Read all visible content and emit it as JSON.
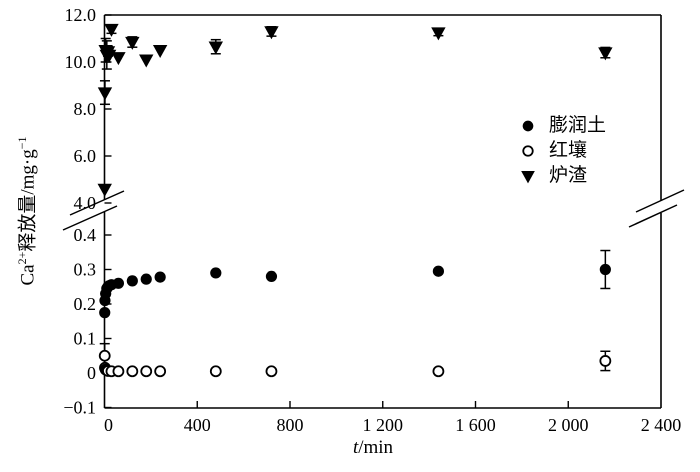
{
  "figure": {
    "background": "#ffffff",
    "ink": "#000000",
    "y_axis_title": {
      "prefix": "Ca",
      "sup1": "2+",
      "mid": "释放量/mg·g",
      "sup2": "−1"
    },
    "x_axis_title": {
      "italic_part": "t",
      "rest": "/min"
    },
    "x_ticks": [
      {
        "t": 0,
        "label": "0"
      },
      {
        "t": 400,
        "label": "400"
      },
      {
        "t": 800,
        "label": "800"
      },
      {
        "t": 1200,
        "label": "1 200"
      },
      {
        "t": 1600,
        "label": "1 600"
      },
      {
        "t": 2000,
        "label": "2 000"
      },
      {
        "t": 2400,
        "label": "2 400"
      }
    ],
    "y_ticks_upper": [
      {
        "v": 12.0,
        "label": "12.0"
      },
      {
        "v": 10.0,
        "label": "10.0"
      },
      {
        "v": 8.0,
        "label": "8.0"
      },
      {
        "v": 6.0,
        "label": "6.0"
      },
      {
        "v": 4.0,
        "label": "4.0"
      }
    ],
    "y_ticks_lower": [
      {
        "v": 0.4,
        "label": "0.4"
      },
      {
        "v": 0.3,
        "label": "0.3"
      },
      {
        "v": 0.2,
        "label": "0.2"
      },
      {
        "v": 0.1,
        "label": "0.1"
      },
      {
        "v": 0.0,
        "label": "0"
      },
      {
        "v": -0.1,
        "label": "−0.1"
      }
    ],
    "legend": [
      {
        "marker": "filled-circle",
        "label": "膨润土"
      },
      {
        "marker": "open-circle",
        "label": "红壤"
      },
      {
        "marker": "filled-triangle-down",
        "label": "炉渣"
      }
    ]
  },
  "chart_data": {
    "type": "scatter",
    "title": "",
    "xlabel": "t/min",
    "ylabel": "Ca²⁺释放量/mg·g⁻¹",
    "x_range": [
      0,
      2400
    ],
    "grid": false,
    "legend_position": "right-inside",
    "y_axis_break": {
      "lower_range": [
        -0.1,
        0.4
      ],
      "upper_range": [
        4.0,
        12.0
      ]
    },
    "series": [
      {
        "name": "炉渣",
        "marker": "filled-triangle-down",
        "points": [
          {
            "t": 1,
            "y": 4.6,
            "err": 0
          },
          {
            "t": 2,
            "y": 8.7,
            "err": 0.5
          },
          {
            "t": 5,
            "y": 10.5,
            "err": 0.5
          },
          {
            "t": 10,
            "y": 10.3,
            "err": 0.6
          },
          {
            "t": 15,
            "y": 10.45,
            "err": 0.2
          },
          {
            "t": 20,
            "y": 10.3,
            "err": 0
          },
          {
            "t": 30,
            "y": 11.4,
            "err": 0.18
          },
          {
            "t": 60,
            "y": 10.2,
            "err": 0
          },
          {
            "t": 120,
            "y": 10.85,
            "err": 0.22
          },
          {
            "t": 180,
            "y": 10.1,
            "err": 0
          },
          {
            "t": 240,
            "y": 10.5,
            "err": 0
          },
          {
            "t": 480,
            "y": 10.65,
            "err": 0.3
          },
          {
            "t": 720,
            "y": 11.3,
            "err": 0.2
          },
          {
            "t": 1440,
            "y": 11.25,
            "err": 0.13
          },
          {
            "t": 2160,
            "y": 10.4,
            "err": 0.22
          }
        ]
      },
      {
        "name": "膨润土",
        "marker": "filled-circle",
        "points": [
          {
            "t": 1,
            "y": 0.175,
            "err": 0
          },
          {
            "t": 2,
            "y": 0.21,
            "err": 0
          },
          {
            "t": 5,
            "y": 0.23,
            "err": 0
          },
          {
            "t": 10,
            "y": 0.245,
            "err": 0
          },
          {
            "t": 15,
            "y": 0.25,
            "err": 0
          },
          {
            "t": 20,
            "y": 0.253,
            "err": 0
          },
          {
            "t": 30,
            "y": 0.256,
            "err": 0
          },
          {
            "t": 60,
            "y": 0.26,
            "err": 0
          },
          {
            "t": 120,
            "y": 0.267,
            "err": 0
          },
          {
            "t": 180,
            "y": 0.272,
            "err": 0
          },
          {
            "t": 240,
            "y": 0.278,
            "err": 0
          },
          {
            "t": 480,
            "y": 0.29,
            "err": 0
          },
          {
            "t": 720,
            "y": 0.28,
            "err": 0
          },
          {
            "t": 1440,
            "y": 0.295,
            "err": 0
          },
          {
            "t": 2160,
            "y": 0.3,
            "err": 0.055
          }
        ]
      },
      {
        "name": "红壤",
        "marker": "open-circle",
        "points": [
          {
            "t": 1,
            "y": 0.05,
            "err": 0.035
          },
          {
            "t": 2,
            "y": 0.015,
            "err": 0
          },
          {
            "t": 5,
            "y": 0.01,
            "err": 0
          },
          {
            "t": 10,
            "y": 0.008,
            "err": 0
          },
          {
            "t": 15,
            "y": 0.006,
            "err": 0
          },
          {
            "t": 30,
            "y": 0.005,
            "err": 0
          },
          {
            "t": 60,
            "y": 0.005,
            "err": 0
          },
          {
            "t": 120,
            "y": 0.005,
            "err": 0
          },
          {
            "t": 180,
            "y": 0.005,
            "err": 0
          },
          {
            "t": 240,
            "y": 0.005,
            "err": 0
          },
          {
            "t": 480,
            "y": 0.005,
            "err": 0
          },
          {
            "t": 720,
            "y": 0.005,
            "err": 0
          },
          {
            "t": 1440,
            "y": 0.005,
            "err": 0
          },
          {
            "t": 2160,
            "y": 0.035,
            "err": 0.028
          }
        ]
      }
    ]
  }
}
